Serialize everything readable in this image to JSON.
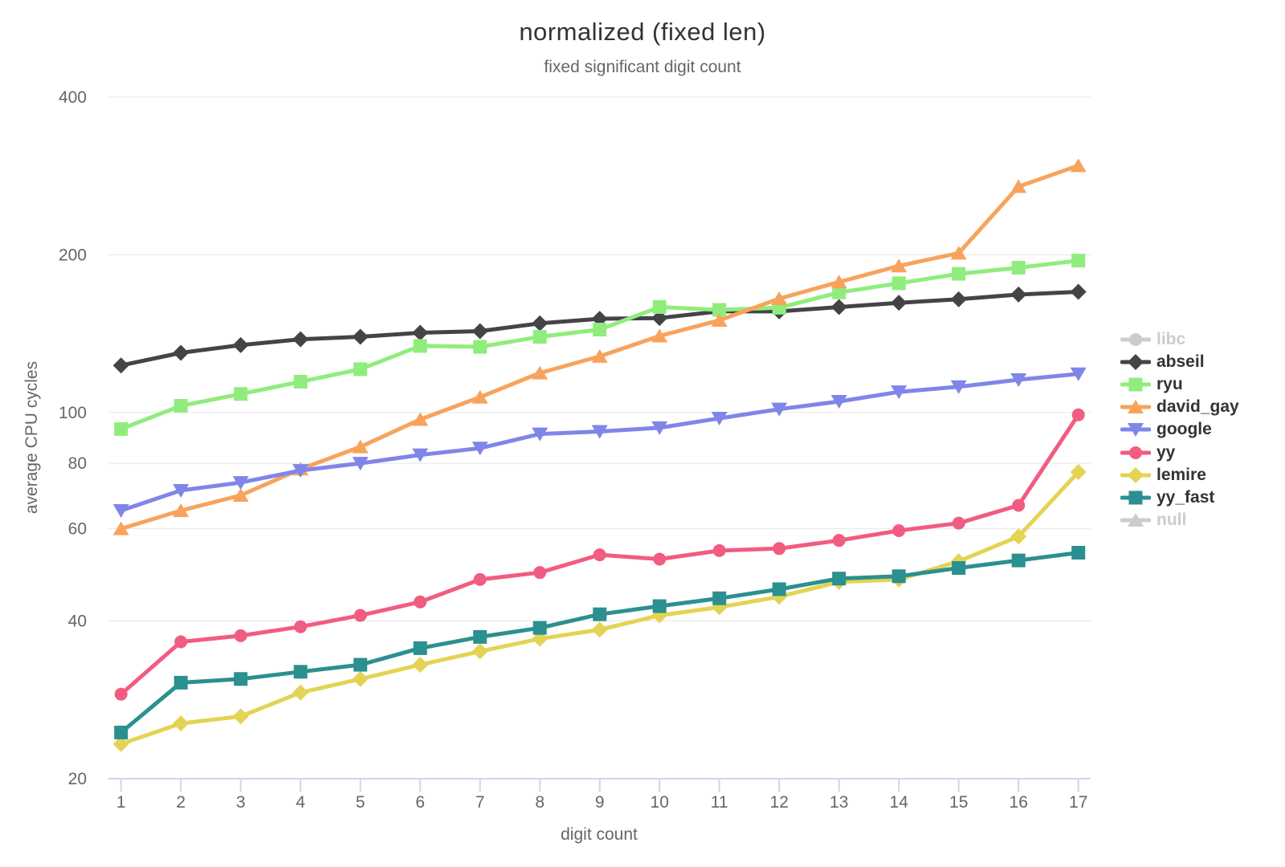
{
  "title": "normalized (fixed len)",
  "subtitle": "fixed significant digit count",
  "chart_data": {
    "type": "line",
    "title": "normalized (fixed len)",
    "subtitle": "fixed significant digit count",
    "xlabel": "digit count",
    "ylabel": "average CPU cycles",
    "x": [
      1,
      2,
      3,
      4,
      5,
      6,
      7,
      8,
      9,
      10,
      11,
      12,
      13,
      14,
      15,
      16,
      17
    ],
    "x_ticks": [
      1,
      2,
      3,
      4,
      5,
      6,
      7,
      8,
      9,
      10,
      11,
      12,
      13,
      14,
      15,
      16,
      17
    ],
    "y_scale": "log",
    "y_ticks": [
      20,
      40,
      60,
      80,
      100,
      200,
      400
    ],
    "ylim": [
      20,
      400
    ],
    "grid": "horizontal",
    "legend_position": "right",
    "series": [
      {
        "name": "libc",
        "color": "#cccccc",
        "marker": "circle",
        "visible": false,
        "values": []
      },
      {
        "name": "abseil",
        "color": "#434348",
        "marker": "diamond",
        "visible": true,
        "values": [
          123,
          130,
          134.5,
          138,
          139.5,
          142,
          143,
          148,
          151,
          151.5,
          156,
          156,
          159,
          162,
          164.5,
          168,
          170
        ]
      },
      {
        "name": "ryu",
        "color": "#90ed7d",
        "marker": "square",
        "visible": true,
        "values": [
          93,
          103,
          108.5,
          114.5,
          121,
          134,
          133.5,
          139.5,
          144,
          159,
          157,
          158.5,
          169.5,
          176.5,
          184,
          189,
          195
        ]
      },
      {
        "name": "david_gay",
        "color": "#f7a35c",
        "marker": "triangle",
        "visible": true,
        "values": [
          60,
          65,
          69.5,
          78,
          86,
          97,
          107,
          119,
          128,
          140,
          150,
          165,
          177.5,
          190.5,
          201.5,
          270,
          296
        ]
      },
      {
        "name": "google",
        "color": "#8085e9",
        "marker": "triangle-down",
        "visible": true,
        "values": [
          65,
          71,
          73.5,
          77.5,
          80,
          83,
          85.5,
          91,
          92,
          93.5,
          97.5,
          101.5,
          105,
          109.5,
          112,
          115.5,
          118.5
        ]
      },
      {
        "name": "yy",
        "color": "#f15c80",
        "marker": "circle",
        "visible": true,
        "values": [
          29,
          36.5,
          37.5,
          39,
          41,
          43.5,
          48,
          49.5,
          53.5,
          52.5,
          54.5,
          55,
          57,
          59.5,
          61.5,
          66.5,
          99
        ]
      },
      {
        "name": "lemire",
        "color": "#e4d354",
        "marker": "diamond",
        "visible": true,
        "values": [
          23.3,
          25.5,
          26.3,
          29.2,
          31,
          33,
          35,
          37,
          38.5,
          41,
          42.5,
          44.5,
          47.5,
          48,
          52,
          58,
          77
        ]
      },
      {
        "name": "yy_fast",
        "color": "#2b908f",
        "marker": "square",
        "visible": true,
        "values": [
          24.5,
          30.5,
          31,
          32,
          33,
          35.5,
          37.3,
          38.8,
          41.2,
          42.7,
          44.2,
          46,
          48.2,
          48.7,
          50.5,
          52.2,
          54
        ]
      },
      {
        "name": "null",
        "color": "#cccccc",
        "marker": "triangle",
        "visible": false,
        "values": []
      }
    ]
  },
  "colors": {
    "background": "#ffffff",
    "grid": "#e6e6e6",
    "axis_line": "#ccd6eb",
    "tick": "#ccd6eb",
    "tick_label": "#666666",
    "title": "#333333",
    "subtitle": "#666666",
    "legend_text": "#333333",
    "legend_disabled": "#cccccc"
  }
}
